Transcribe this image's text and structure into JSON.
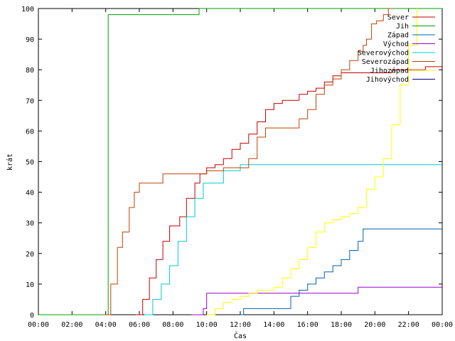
{
  "chart_data": {
    "type": "line",
    "xlabel": "Čas",
    "ylabel": "krát",
    "xlim": [
      0,
      24
    ],
    "ylim": [
      0,
      100
    ],
    "x_ticks": [
      {
        "v": 0,
        "label": "00:00"
      },
      {
        "v": 2,
        "label": "02:00"
      },
      {
        "v": 4,
        "label": "04:00"
      },
      {
        "v": 6,
        "label": "06:00"
      },
      {
        "v": 8,
        "label": "08:00"
      },
      {
        "v": 10,
        "label": "10:00"
      },
      {
        "v": 12,
        "label": "12:00"
      },
      {
        "v": 14,
        "label": "14:00"
      },
      {
        "v": 16,
        "label": "16:00"
      },
      {
        "v": 18,
        "label": "18:00"
      },
      {
        "v": 20,
        "label": "20:00"
      },
      {
        "v": 22,
        "label": "22:00"
      },
      {
        "v": 24,
        "label": "00:00"
      }
    ],
    "y_ticks": [
      {
        "v": 0,
        "label": "0"
      },
      {
        "v": 10,
        "label": "10"
      },
      {
        "v": 20,
        "label": "20"
      },
      {
        "v": 30,
        "label": "30"
      },
      {
        "v": 40,
        "label": "40"
      },
      {
        "v": 50,
        "label": "50"
      },
      {
        "v": 60,
        "label": "60"
      },
      {
        "v": 70,
        "label": "70"
      },
      {
        "v": 80,
        "label": "80"
      },
      {
        "v": 90,
        "label": "90"
      },
      {
        "v": 100,
        "label": "100"
      }
    ],
    "grid": false,
    "legend_position": "top-right",
    "series": [
      {
        "name": "Sever",
        "color": "#c00000",
        "x": [
          5.8,
          6.2,
          6.6,
          7.0,
          7.4,
          7.8,
          8.4,
          8.8,
          9.3,
          9.6,
          10.0,
          10.5,
          11.0,
          11.5,
          12.0,
          12.5,
          13.0,
          13.5,
          14.0,
          14.5,
          15.0,
          15.5,
          16.0,
          16.5,
          17.0,
          17.5,
          18.0,
          18.5,
          19.0,
          20.0,
          21.0,
          22.0,
          23.0,
          24.0
        ],
        "y": [
          0,
          5,
          12,
          18,
          24,
          29,
          32,
          38,
          43,
          46,
          48,
          49,
          51,
          54,
          56,
          59,
          63,
          67,
          69,
          70,
          70,
          72,
          73,
          74,
          76,
          78,
          79,
          79,
          79,
          79,
          80,
          80,
          81,
          81
        ]
      },
      {
        "name": "Jih",
        "color": "#00a000",
        "x": [
          0.0,
          4.15,
          9.5,
          9.55,
          24.0
        ],
        "y": [
          0,
          98,
          98,
          100,
          100
        ]
      },
      {
        "name": "Západ",
        "color": "#0060b0",
        "x": [
          12.0,
          12.2,
          13.0,
          14.5,
          15.0,
          15.5,
          16.0,
          16.5,
          17.0,
          17.5,
          18.0,
          18.5,
          19.0,
          19.3,
          20.0,
          22.0,
          24.0
        ],
        "y": [
          0,
          2,
          2,
          2,
          6,
          8,
          10,
          12,
          14,
          16,
          18,
          21,
          24,
          28,
          28,
          28,
          28
        ]
      },
      {
        "name": "Východ",
        "color": "#9900cc",
        "x": [
          9.1,
          9.8,
          10.0,
          12.0,
          16.0,
          18.8,
          19.0,
          22.0,
          24.0
        ],
        "y": [
          0,
          2,
          7,
          7,
          7,
          7,
          9,
          9,
          9
        ]
      },
      {
        "name": "Severovýchod",
        "color": "#00cccc",
        "x": [
          6.3,
          6.8,
          7.3,
          7.8,
          8.3,
          8.8,
          9.3,
          9.8,
          10.3,
          11.0,
          12.0,
          12.3,
          13.0,
          16.0,
          20.0,
          24.0
        ],
        "y": [
          0,
          5,
          10,
          16,
          24,
          32,
          38,
          43,
          43,
          47,
          49,
          49,
          49,
          49,
          49,
          49
        ]
      },
      {
        "name": "Severozápad",
        "color": "#c04000",
        "x": [
          3.9,
          4.3,
          4.7,
          5.0,
          5.4,
          5.7,
          6.0,
          7.0,
          7.4,
          9.0,
          10.0,
          11.0,
          12.0,
          12.5,
          13.0,
          13.5,
          15.0,
          15.5,
          16.0,
          16.5,
          17.0,
          17.5,
          18.0,
          18.5,
          19.0,
          19.3,
          19.5,
          19.8,
          20.1,
          20.5,
          20.8,
          21.0
        ],
        "y": [
          0,
          10,
          22,
          27,
          35,
          40,
          43,
          43,
          46,
          46,
          47,
          48,
          48,
          51,
          58,
          61,
          61,
          64,
          67,
          72,
          75,
          77,
          80,
          83,
          86,
          88,
          90,
          95,
          96,
          98,
          100,
          100
        ]
      },
      {
        "name": "Jihozápad",
        "color": "#ffff00",
        "x": [
          10.0,
          10.5,
          11.0,
          11.5,
          12.0,
          12.5,
          13.0,
          14.0,
          14.5,
          15.0,
          15.5,
          16.0,
          16.5,
          17.0,
          17.5,
          18.0,
          18.5,
          19.0,
          19.5,
          20.0,
          20.5,
          21.0,
          21.5,
          22.0,
          22.5
        ],
        "y": [
          0,
          2,
          4,
          5,
          6,
          7,
          8,
          9,
          12,
          15,
          18,
          22,
          27,
          30,
          31,
          32,
          33,
          35,
          41,
          45,
          51,
          62,
          75,
          88,
          100
        ]
      },
      {
        "name": "Jihovýchod",
        "color": "#000080",
        "x": [],
        "y": []
      }
    ]
  }
}
